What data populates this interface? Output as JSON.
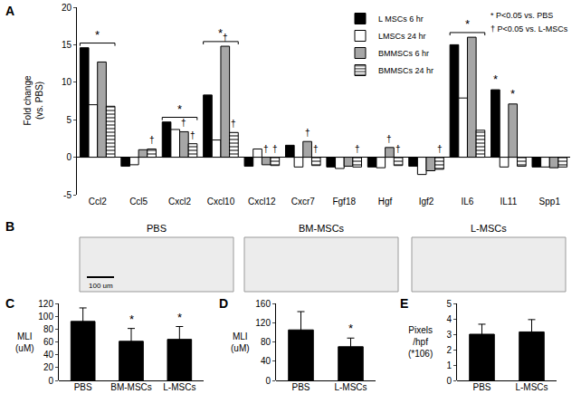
{
  "chart_data": [
    {
      "panel": "A",
      "type": "bar",
      "ylabel": "Fold change\n(vs. PBS)",
      "categories": [
        "Ccl2",
        "Ccl5",
        "Cxcl2",
        "Cxcl10",
        "Cxcl12",
        "Cxcr7",
        "Fgf18",
        "Hgf",
        "Igf2",
        "IL6",
        "IL11",
        "Spp1"
      ],
      "series": [
        {
          "name": "L MSCs 6 hr",
          "color": "#000000",
          "values": [
            14.6,
            -1.2,
            4.7,
            8.3,
            -1.2,
            1.6,
            -1.3,
            -1.3,
            -1.2,
            15,
            9,
            -1.3
          ]
        },
        {
          "name": "LMSCs 24 hr",
          "color": "#ffffff",
          "values": [
            7,
            -1,
            3.7,
            2.3,
            1.1,
            -1.3,
            -1.5,
            -1.4,
            -2.3,
            7.9,
            -1.3,
            -1.3
          ]
        },
        {
          "name": "BMMSCs 6 hr",
          "color": "#a6a6a6",
          "values": [
            12.7,
            1,
            3.4,
            14.8,
            -1,
            2.1,
            -1.2,
            1.3,
            -1.8,
            16,
            7.1,
            -1.4
          ]
        },
        {
          "name": "BMMSCs 24 hr",
          "color": "#808080",
          "marker": "striped",
          "values": [
            6.8,
            1.1,
            1.8,
            3.3,
            -1.1,
            -1.1,
            -1.3,
            -1.1,
            -1.6,
            3.6,
            -1.2,
            -1.3
          ]
        }
      ],
      "ylim": [
        -5,
        20
      ],
      "yticks": [
        -5,
        0,
        5,
        10,
        15,
        20
      ],
      "legend": "top right",
      "notes": [
        "* P<0.05 vs. PBS",
        "† P<0.05 vs. L-MSCs"
      ],
      "annotations": [
        {
          "category": "Ccl2",
          "text": "*"
        },
        {
          "category": "Ccl5",
          "series": 3,
          "text": "†"
        },
        {
          "category": "Cxcl2",
          "text": "*"
        },
        {
          "category": "Cxcl2",
          "series": 2,
          "text": "†"
        },
        {
          "category": "Cxcl2",
          "series": 3,
          "text": "†"
        },
        {
          "category": "Cxcl10",
          "text": "*"
        },
        {
          "category": "Cxcl10",
          "series": 2,
          "text": "†"
        },
        {
          "category": "Cxcl10",
          "series": 3,
          "text": "†"
        },
        {
          "category": "Cxcl12",
          "series": 2,
          "text": "†"
        },
        {
          "category": "Cxcl12",
          "series": 3,
          "text": "†"
        },
        {
          "category": "Cxcr7",
          "series": 2,
          "text": "†"
        },
        {
          "category": "Cxcr7",
          "series": 3,
          "text": "†"
        },
        {
          "category": "Fgf18",
          "series": 3,
          "text": "†"
        },
        {
          "category": "Hgf",
          "series": 2,
          "text": "†"
        },
        {
          "category": "Hgf",
          "series": 3,
          "text": "†"
        },
        {
          "category": "Igf2",
          "series": 3,
          "text": "†"
        },
        {
          "category": "IL6",
          "text": "*"
        },
        {
          "category": "IL11",
          "series": 0,
          "text": "*"
        },
        {
          "category": "IL11",
          "series": 2,
          "text": "*"
        }
      ]
    },
    {
      "panel": "B",
      "type": "image",
      "titles": [
        "PBS",
        "BM-MSCs",
        "L-MSCs"
      ],
      "scale_bar": "100 um"
    },
    {
      "panel": "C",
      "type": "bar",
      "ylabel": "MLI\n(uM)",
      "categories": [
        "PBS",
        "BM-MSCs",
        "L-MSCs"
      ],
      "values": [
        92,
        61,
        64
      ],
      "errors": [
        21,
        20,
        20
      ],
      "color": "#000000",
      "ylim": [
        0,
        120
      ],
      "yticks": [
        0,
        20,
        40,
        60,
        80,
        100,
        120
      ],
      "annotations": [
        {
          "category": "BM-MSCs",
          "text": "*"
        },
        {
          "category": "L-MSCs",
          "text": "*"
        }
      ]
    },
    {
      "panel": "D",
      "type": "bar",
      "ylabel": "MLI\n(uM)",
      "categories": [
        "PBS",
        "L-MSCs"
      ],
      "values": [
        105,
        70
      ],
      "errors": [
        38,
        18
      ],
      "color": "#000000",
      "ylim": [
        0,
        160
      ],
      "yticks": [
        0,
        40,
        80,
        120,
        160
      ],
      "annotations": [
        {
          "category": "L-MSCs",
          "text": "*"
        }
      ]
    },
    {
      "panel": "E",
      "type": "bar",
      "ylabel": "Pixels\n/hpf\n(*106)",
      "categories": [
        "PBS",
        "L-MSCs"
      ],
      "values": [
        3.0,
        3.15
      ],
      "errors": [
        0.65,
        0.8
      ],
      "color": "#000000",
      "ylim": [
        0,
        5
      ],
      "yticks": [
        0,
        1,
        2,
        3,
        4,
        5
      ]
    }
  ]
}
